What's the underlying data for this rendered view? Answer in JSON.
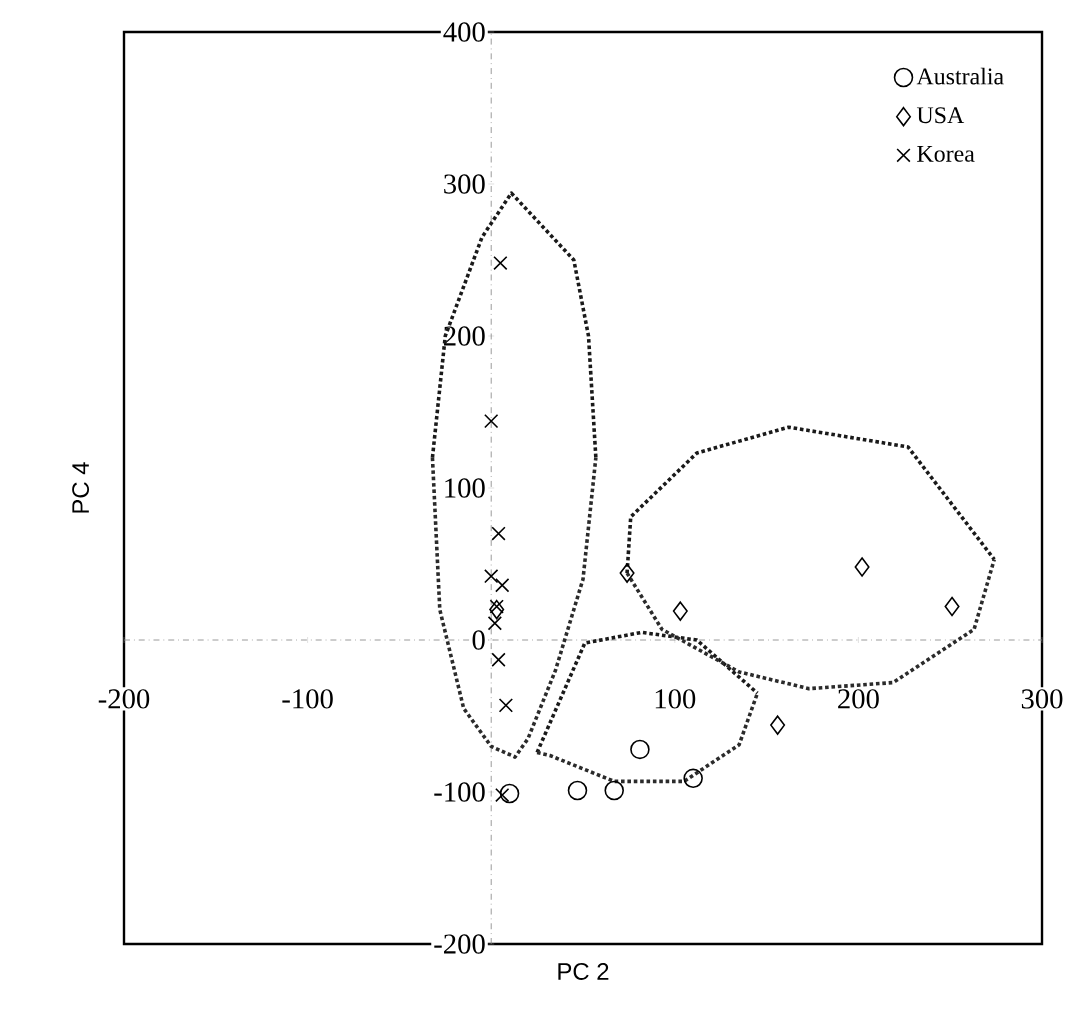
{
  "chart_data": {
    "type": "scatter",
    "xlabel": "PC 2",
    "ylabel": "PC 4",
    "xlim": [
      -200,
      300
    ],
    "ylim": [
      -200,
      400
    ],
    "xticks": [
      -200,
      -100,
      100,
      200,
      300
    ],
    "yticks": [
      -200,
      -100,
      0,
      100,
      200,
      300,
      400
    ],
    "legend": "top right",
    "series": [
      {
        "name": "Australia",
        "color": "#000000",
        "marker": "circle",
        "x": [
          10,
          47,
          67,
          81,
          110
        ],
        "values": [
          -101,
          -99,
          -99,
          -72,
          -91
        ]
      },
      {
        "name": "USA",
        "color": "#000000",
        "marker": "diamond",
        "x": [
          74,
          103,
          202,
          251,
          156,
          3
        ],
        "values": [
          44,
          19,
          48,
          22,
          -56,
          20
        ]
      },
      {
        "name": "Korea",
        "color": "#000000",
        "marker": "cross",
        "x": [
          5,
          0,
          4,
          0,
          6,
          3,
          2,
          4,
          8,
          6
        ],
        "values": [
          248,
          144,
          70,
          42,
          36,
          22,
          11,
          -13,
          -43,
          -102
        ]
      },
      {
        "type": "line",
        "color": "#1a1a1a",
        "line_style": "dotted",
        "marker": "none",
        "x": [
          -32,
          -25,
          -5,
          11,
          45,
          53,
          57
        ],
        "values": [
          120,
          200,
          265,
          294,
          250,
          200,
          120
        ]
      },
      {
        "type": "line",
        "color": "#2b2b2b",
        "line_style": "dotted",
        "marker": "none",
        "x": [
          -32,
          -28,
          -15,
          0,
          13,
          20,
          35,
          50,
          57
        ],
        "values": [
          120,
          20,
          -45,
          -70,
          -77,
          -65,
          -20,
          40,
          120
        ]
      },
      {
        "type": "line",
        "color": "#1a1a1a",
        "line_style": "dotted",
        "marker": "none",
        "x": [
          25,
          51,
          82,
          112,
          145
        ],
        "values": [
          -74,
          -2,
          5,
          0,
          -35
        ]
      },
      {
        "type": "line",
        "color": "#2b2b2b",
        "line_style": "dotted",
        "marker": "none",
        "x": [
          25,
          32,
          67,
          105,
          135,
          145
        ],
        "values": [
          -74,
          -76,
          -93,
          -93,
          -69,
          -35
        ]
      },
      {
        "type": "line",
        "color": "#1a1a1a",
        "line_style": "dotted",
        "marker": "none",
        "x": [
          74,
          76,
          112,
          162,
          227,
          274
        ],
        "values": [
          44,
          81,
          123,
          140,
          127,
          53
        ]
      },
      {
        "type": "line",
        "color": "#2b2b2b",
        "line_style": "dotted",
        "marker": "none",
        "x": [
          74,
          93,
          135,
          173,
          219,
          263,
          274
        ],
        "values": [
          44,
          7,
          -21,
          -32,
          -28,
          7,
          53
        ]
      }
    ]
  }
}
